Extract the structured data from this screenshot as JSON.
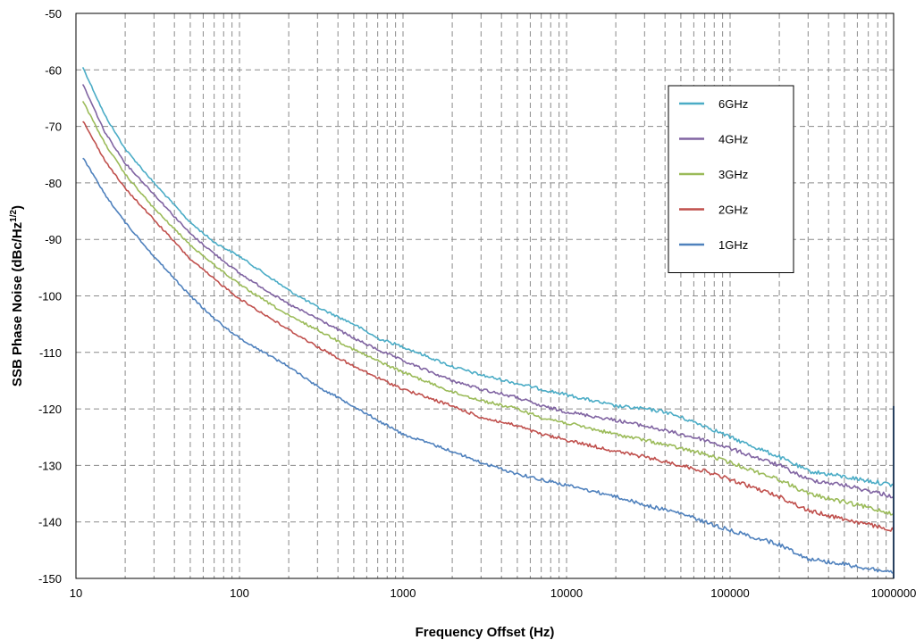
{
  "chart_data": {
    "type": "line",
    "xlabel": "Frequency Offset (Hz)",
    "ylabel_main": "SSB Phase Noise (dBc/Hz",
    "ylabel_sup": "1/2",
    "ylabel_close": ")",
    "xscale": "log",
    "xlim": [
      10,
      1000000
    ],
    "ylim": [
      -150,
      -50
    ],
    "x_ticks": [
      10,
      100,
      1000,
      10000,
      100000,
      1000000
    ],
    "x_tick_labels": [
      "10",
      "100",
      "1000",
      "10000",
      "100000",
      "1000000"
    ],
    "y_ticks": [
      -150,
      -140,
      -130,
      -120,
      -110,
      -100,
      -90,
      -80,
      -70,
      -60,
      -50
    ],
    "y_tick_labels": [
      "-150",
      "-140",
      "-130",
      "-120",
      "-110",
      "-100",
      "-90",
      "-80",
      "-70",
      "-60",
      "-50"
    ],
    "grid": true,
    "legend_position": "top-right",
    "series": [
      {
        "name": "6GHz",
        "color": "#4bacc6",
        "points": [
          [
            11,
            -59.5
          ],
          [
            15,
            -68
          ],
          [
            20,
            -74
          ],
          [
            30,
            -80
          ],
          [
            50,
            -87
          ],
          [
            70,
            -90.5
          ],
          [
            100,
            -93
          ],
          [
            200,
            -99
          ],
          [
            300,
            -102
          ],
          [
            500,
            -105
          ],
          [
            700,
            -107.5
          ],
          [
            1000,
            -109
          ],
          [
            2000,
            -112.5
          ],
          [
            3000,
            -114
          ],
          [
            5000,
            -115.5
          ],
          [
            7000,
            -116.5
          ],
          [
            10000,
            -117.5
          ],
          [
            20000,
            -119.5
          ],
          [
            30000,
            -120
          ],
          [
            40000,
            -120.5
          ],
          [
            50000,
            -121.5
          ],
          [
            70000,
            -123
          ],
          [
            100000,
            -125
          ],
          [
            200000,
            -128.5
          ],
          [
            300000,
            -131
          ],
          [
            500000,
            -132
          ],
          [
            1000000,
            -133.5
          ]
        ]
      },
      {
        "name": "4GHz",
        "color": "#8064a2",
        "points": [
          [
            11,
            -62.5
          ],
          [
            15,
            -71
          ],
          [
            20,
            -76.5
          ],
          [
            30,
            -82
          ],
          [
            50,
            -89
          ],
          [
            70,
            -92.5
          ],
          [
            100,
            -96
          ],
          [
            200,
            -101.5
          ],
          [
            300,
            -104
          ],
          [
            500,
            -107.5
          ],
          [
            700,
            -109.5
          ],
          [
            1000,
            -111.5
          ],
          [
            2000,
            -115
          ],
          [
            3000,
            -116.5
          ],
          [
            5000,
            -118
          ],
          [
            7000,
            -119.5
          ],
          [
            10000,
            -120.5
          ],
          [
            20000,
            -122
          ],
          [
            30000,
            -123
          ],
          [
            50000,
            -124.5
          ],
          [
            70000,
            -125.5
          ],
          [
            100000,
            -127
          ],
          [
            200000,
            -130
          ],
          [
            300000,
            -132.5
          ],
          [
            500000,
            -133.5
          ],
          [
            1000000,
            -135.5
          ]
        ]
      },
      {
        "name": "3GHz",
        "color": "#9bbb59",
        "points": [
          [
            11,
            -65.5
          ],
          [
            15,
            -73
          ],
          [
            20,
            -78.5
          ],
          [
            30,
            -84.5
          ],
          [
            50,
            -91
          ],
          [
            70,
            -94.5
          ],
          [
            100,
            -98
          ],
          [
            200,
            -103.5
          ],
          [
            300,
            -106
          ],
          [
            500,
            -109.5
          ],
          [
            700,
            -111.5
          ],
          [
            1000,
            -113.5
          ],
          [
            2000,
            -117
          ],
          [
            3000,
            -118.5
          ],
          [
            5000,
            -120
          ],
          [
            7000,
            -121.5
          ],
          [
            10000,
            -122.5
          ],
          [
            20000,
            -124.5
          ],
          [
            30000,
            -125.5
          ],
          [
            50000,
            -127
          ],
          [
            70000,
            -128
          ],
          [
            100000,
            -129.5
          ],
          [
            200000,
            -132.5
          ],
          [
            300000,
            -135
          ],
          [
            500000,
            -136.5
          ],
          [
            1000000,
            -138.5
          ]
        ]
      },
      {
        "name": "2GHz",
        "color": "#c0504d",
        "points": [
          [
            11,
            -69
          ],
          [
            15,
            -76
          ],
          [
            20,
            -81
          ],
          [
            30,
            -86.5
          ],
          [
            50,
            -93.5
          ],
          [
            70,
            -97
          ],
          [
            100,
            -100.5
          ],
          [
            200,
            -106
          ],
          [
            300,
            -109
          ],
          [
            500,
            -112.5
          ],
          [
            700,
            -114.5
          ],
          [
            1000,
            -116.5
          ],
          [
            2000,
            -119.5
          ],
          [
            3000,
            -121.5
          ],
          [
            5000,
            -123
          ],
          [
            7000,
            -124.5
          ],
          [
            10000,
            -125.5
          ],
          [
            20000,
            -127.5
          ],
          [
            30000,
            -128.5
          ],
          [
            50000,
            -130
          ],
          [
            70000,
            -131
          ],
          [
            100000,
            -132.5
          ],
          [
            200000,
            -135.5
          ],
          [
            300000,
            -138
          ],
          [
            500000,
            -139.5
          ],
          [
            1000000,
            -141.5
          ]
        ]
      },
      {
        "name": "1GHz",
        "color": "#4f81bd",
        "points": [
          [
            11,
            -75.5
          ],
          [
            15,
            -82
          ],
          [
            20,
            -87
          ],
          [
            30,
            -93
          ],
          [
            50,
            -100
          ],
          [
            70,
            -104
          ],
          [
            100,
            -107.5
          ],
          [
            200,
            -112.5
          ],
          [
            300,
            -116
          ],
          [
            500,
            -119.5
          ],
          [
            700,
            -122
          ],
          [
            1000,
            -124.5
          ],
          [
            2000,
            -127.5
          ],
          [
            3000,
            -129.5
          ],
          [
            5000,
            -131.5
          ],
          [
            7000,
            -132.5
          ],
          [
            10000,
            -133.5
          ],
          [
            20000,
            -135.5
          ],
          [
            30000,
            -137
          ],
          [
            50000,
            -138.5
          ],
          [
            70000,
            -140
          ],
          [
            100000,
            -141.5
          ],
          [
            200000,
            -144
          ],
          [
            300000,
            -146.5
          ],
          [
            500000,
            -147.5
          ],
          [
            1000000,
            -149
          ]
        ]
      }
    ]
  }
}
